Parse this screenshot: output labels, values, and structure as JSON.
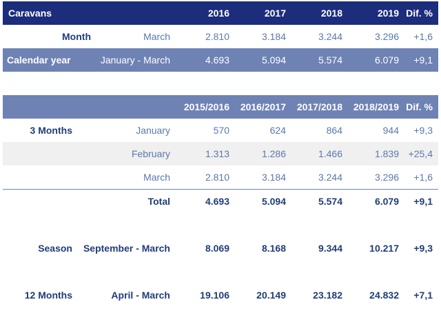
{
  "colors": {
    "header_dark": "#1c2d7c",
    "header_mid": "#6e82b4",
    "text_navy": "#1f3d78",
    "text_blue": "#5a78aa",
    "row_grey": "#f0f0f0"
  },
  "table1": {
    "header": [
      "Caravans",
      "2016",
      "2017",
      "2018",
      "2019",
      "Dif. %"
    ],
    "month": {
      "label": "Month",
      "period": "March",
      "values": [
        "2.810",
        "3.184",
        "3.244",
        "3.296",
        "+1,6"
      ]
    },
    "calendar": {
      "label": "Calendar year",
      "period": "January - March",
      "values": [
        "4.693",
        "5.094",
        "5.574",
        "6.079",
        "+9,1"
      ]
    }
  },
  "table2": {
    "header": [
      "2015/2016",
      "2016/2017",
      "2017/2018",
      "2018/2019",
      "Dif. %"
    ],
    "three_months_label": "3 Months",
    "rows": [
      {
        "period": "January",
        "values": [
          "570",
          "624",
          "864",
          "944",
          "+9,3"
        ]
      },
      {
        "period": "February",
        "values": [
          "1.313",
          "1.286",
          "1.466",
          "1.839",
          "+25,4"
        ]
      },
      {
        "period": "March",
        "values": [
          "2.810",
          "3.184",
          "3.244",
          "3.296",
          "+1,6"
        ]
      }
    ],
    "total": {
      "label": "Total",
      "values": [
        "4.693",
        "5.094",
        "5.574",
        "6.079",
        "+9,1"
      ]
    },
    "season": {
      "label": "Season",
      "period": "September - March",
      "values": [
        "8.069",
        "8.168",
        "9.344",
        "10.217",
        "+9,3"
      ]
    },
    "twelve": {
      "label": "12 Months",
      "period": "April - March",
      "values": [
        "19.106",
        "20.149",
        "23.182",
        "24.832",
        "+7,1"
      ]
    }
  }
}
